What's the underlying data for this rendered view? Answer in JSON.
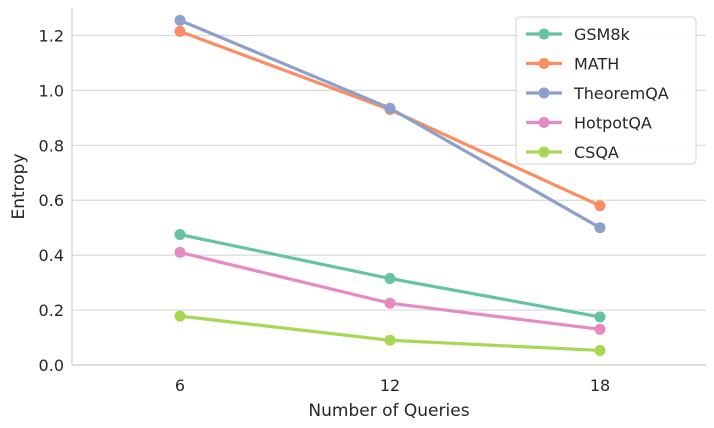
{
  "chart_data": {
    "type": "line",
    "xlabel": "Number of Queries",
    "ylabel": "Entropy",
    "categories": [
      "6",
      "12",
      "18"
    ],
    "ylim": [
      0.0,
      1.3
    ],
    "yticks": [
      0.0,
      0.2,
      0.4,
      0.6,
      0.8,
      1.0,
      1.2
    ],
    "ytick_labels": [
      "0.0",
      "0.2",
      "0.4",
      "0.6",
      "0.8",
      "1.0",
      "1.2"
    ],
    "grid": "horizontal",
    "legend_position": "top-right",
    "series": [
      {
        "name": "GSM8k",
        "color": "#66c2a5",
        "values": [
          0.475,
          0.315,
          0.175
        ]
      },
      {
        "name": "MATH",
        "color": "#fc8d62",
        "values": [
          1.215,
          0.93,
          0.58
        ]
      },
      {
        "name": "TheoremQA",
        "color": "#8da0cb",
        "values": [
          1.255,
          0.935,
          0.5
        ]
      },
      {
        "name": "HotpotQA",
        "color": "#e78ac3",
        "values": [
          0.41,
          0.225,
          0.13
        ]
      },
      {
        "name": "CSQA",
        "color": "#a6d854",
        "values": [
          0.178,
          0.09,
          0.053
        ]
      }
    ]
  }
}
